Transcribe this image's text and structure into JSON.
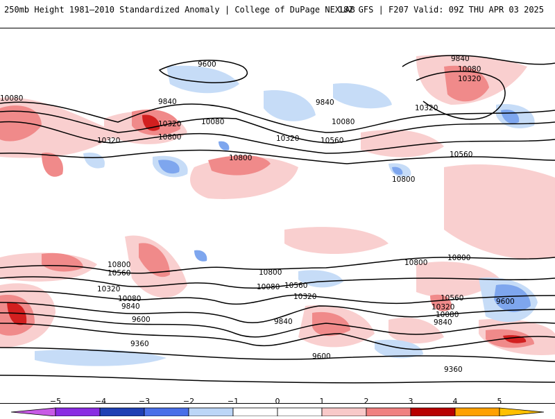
{
  "header": {
    "title": "250mb Height 1981–2010 Standardized Anomaly | College of DuPage NEXLAB",
    "run_info": "18Z GFS | F207 Valid: 09Z THU APR 03 2025"
  },
  "contour_labels": [
    "9840",
    "10080",
    "10320",
    "9600",
    "9840",
    "10080",
    "10320",
    "10560",
    "10800",
    "10080",
    "10560",
    "10800",
    "10320",
    "10560",
    "9840",
    "10080",
    "10320",
    "10560",
    "10800",
    "10800",
    "10800",
    "10800",
    "10560",
    "10320",
    "10080",
    "9840",
    "9600",
    "9360",
    "10800",
    "10080",
    "10560",
    "10320",
    "9840",
    "10560",
    "10320",
    "10080",
    "9840",
    "9600",
    "9600",
    "9360"
  ],
  "colorbar": {
    "ticks": [
      "−5",
      "−4",
      "−3",
      "−2",
      "−1",
      "0",
      "1",
      "2",
      "3",
      "4",
      "5"
    ],
    "colors": [
      "#c85ae6",
      "#8a2be2",
      "#1f3fb4",
      "#4a6fe8",
      "#bcd6f7",
      "#ffffff",
      "#ffffff",
      "#f9c9c9",
      "#f08080",
      "#e24040",
      "#b80000",
      "#ffa000"
    ]
  },
  "legend_colors": {
    "neg_light": "#c6dcf7",
    "neg_mid": "#7ea6ee",
    "neg_strong": "#2f5fe0",
    "pos_light": "#f9cfcf",
    "pos_mid": "#f08a8a",
    "pos_strong": "#d21f1f"
  }
}
